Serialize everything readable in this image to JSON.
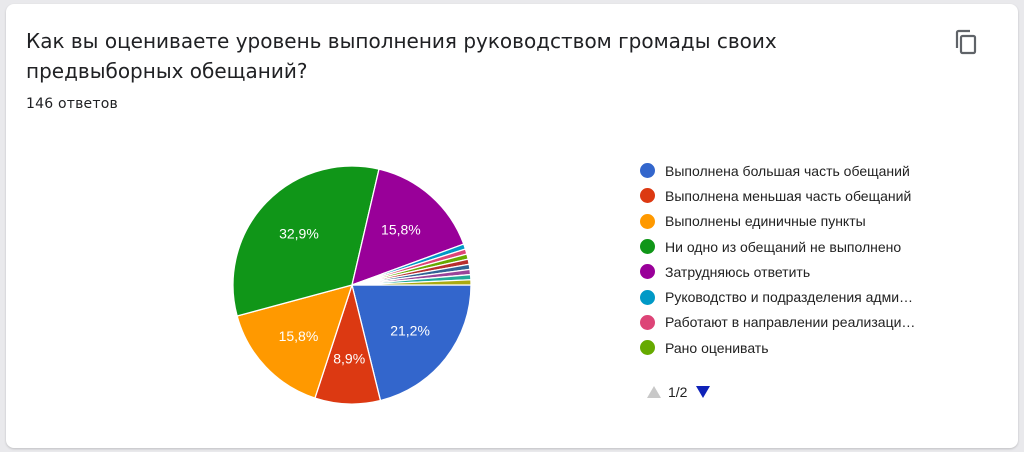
{
  "question": {
    "title": "Как вы оцениваете уровень выполнения руководством громады своих предвыборных обещаний?",
    "response_count": "146 ответов"
  },
  "icons": {
    "copy": "copy-icon",
    "prev": "triangle-up-icon",
    "next": "triangle-down-icon"
  },
  "pager": {
    "label": "1/2"
  },
  "chart_data": {
    "type": "pie",
    "slices": [
      {
        "label": "Выполнена большая часть обещаний",
        "value": 21.2,
        "display": "21,2%",
        "color": "#3366cc"
      },
      {
        "label": "Выполнена меньшая часть обещаний",
        "value": 8.9,
        "display": "8,9%",
        "color": "#dc3912"
      },
      {
        "label": "Выполнены единичные пункты",
        "value": 15.8,
        "display": "15,8%",
        "color": "#ff9900"
      },
      {
        "label": "Ни одно из обещаний не выполнено",
        "value": 32.9,
        "display": "32,9%",
        "color": "#109618"
      },
      {
        "label": "Затрудняюсь ответить",
        "value": 15.8,
        "display": "15,8%",
        "color": "#990099"
      },
      {
        "label": "Руководство и подразделения адми…",
        "value": 0.7,
        "display": "",
        "color": "#0099c6"
      },
      {
        "label": "Работают в направлении реализаци…",
        "value": 0.7,
        "display": "",
        "color": "#dd4477"
      },
      {
        "label": "Рано оценивать",
        "value": 0.7,
        "display": "",
        "color": "#66aa00"
      },
      {
        "label": "",
        "value": 0.7,
        "display": "",
        "color": "#b82e2e"
      },
      {
        "label": "",
        "value": 0.7,
        "display": "",
        "color": "#316395"
      },
      {
        "label": "",
        "value": 0.7,
        "display": "",
        "color": "#994499"
      },
      {
        "label": "",
        "value": 0.7,
        "display": "",
        "color": "#22aa99"
      },
      {
        "label": "",
        "value": 0.7,
        "display": "",
        "color": "#aaaa11"
      }
    ],
    "legend_position": "right",
    "legend_visible_count": 8
  }
}
